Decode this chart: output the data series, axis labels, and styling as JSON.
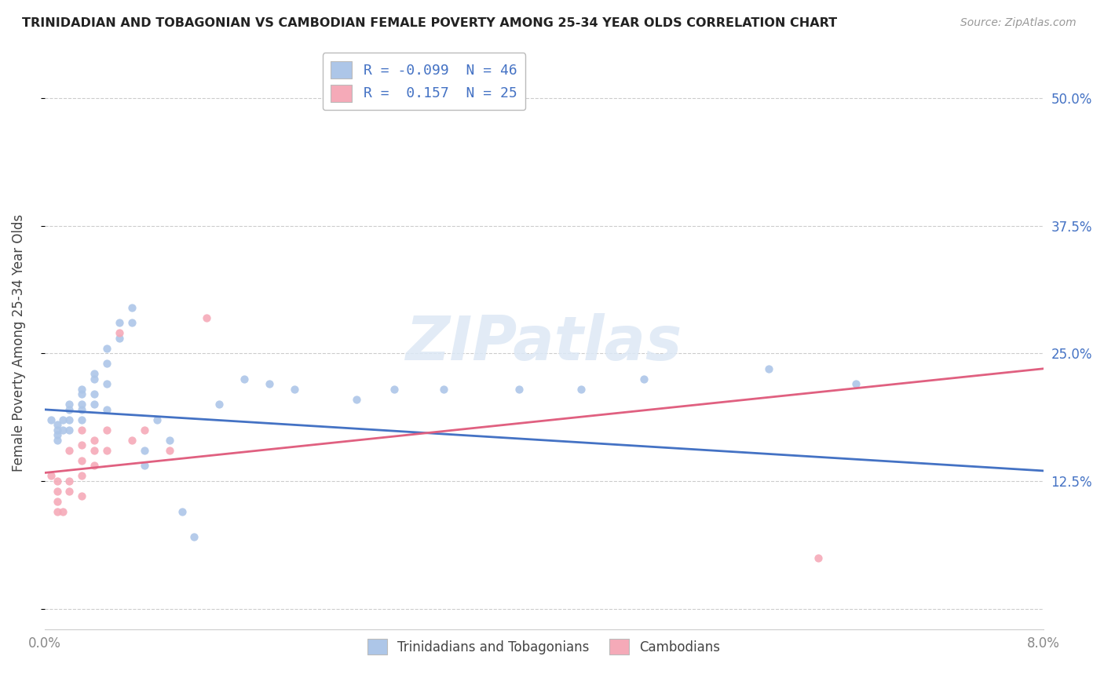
{
  "title": "TRINIDADIAN AND TOBAGONIAN VS CAMBODIAN FEMALE POVERTY AMONG 25-34 YEAR OLDS CORRELATION CHART",
  "source": "Source: ZipAtlas.com",
  "ylabel": "Female Poverty Among 25-34 Year Olds",
  "xlim": [
    0.0,
    0.08
  ],
  "ylim": [
    -0.02,
    0.54
  ],
  "yticks": [
    0.0,
    0.125,
    0.25,
    0.375,
    0.5
  ],
  "ytick_labels": [
    "",
    "12.5%",
    "25.0%",
    "37.5%",
    "50.0%"
  ],
  "xtick_positions": [
    0.0,
    0.01,
    0.02,
    0.03,
    0.04,
    0.05,
    0.06,
    0.07,
    0.08
  ],
  "xtick_labels": [
    "0.0%",
    "",
    "",
    "",
    "",
    "",
    "",
    "",
    "8.0%"
  ],
  "blue_color": "#adc6e8",
  "pink_color": "#f5aab8",
  "blue_line_color": "#4472c4",
  "pink_line_color": "#e06080",
  "watermark_text": "ZIPatlas",
  "legend_title_blue": "R = -0.099  N = 46",
  "legend_title_pink": "R =  0.157  N = 25",
  "grid_color": "#cccccc",
  "title_color": "#222222",
  "axis_label_color": "#444444",
  "tick_color": "#888888",
  "source_color": "#999999",
  "blue_x": [
    0.0005,
    0.001,
    0.001,
    0.001,
    0.001,
    0.0015,
    0.0015,
    0.002,
    0.002,
    0.002,
    0.002,
    0.003,
    0.003,
    0.003,
    0.003,
    0.003,
    0.004,
    0.004,
    0.004,
    0.004,
    0.005,
    0.005,
    0.005,
    0.005,
    0.006,
    0.006,
    0.007,
    0.007,
    0.008,
    0.008,
    0.009,
    0.01,
    0.011,
    0.012,
    0.014,
    0.016,
    0.018,
    0.02,
    0.025,
    0.028,
    0.032,
    0.038,
    0.043,
    0.048,
    0.058,
    0.065
  ],
  "blue_y": [
    0.185,
    0.18,
    0.175,
    0.17,
    0.165,
    0.185,
    0.175,
    0.2,
    0.195,
    0.185,
    0.175,
    0.215,
    0.21,
    0.2,
    0.195,
    0.185,
    0.23,
    0.225,
    0.21,
    0.2,
    0.255,
    0.24,
    0.22,
    0.195,
    0.28,
    0.265,
    0.295,
    0.28,
    0.155,
    0.14,
    0.185,
    0.165,
    0.095,
    0.07,
    0.2,
    0.225,
    0.22,
    0.215,
    0.205,
    0.215,
    0.215,
    0.215,
    0.215,
    0.225,
    0.235,
    0.22
  ],
  "pink_x": [
    0.0005,
    0.001,
    0.001,
    0.001,
    0.001,
    0.0015,
    0.002,
    0.002,
    0.002,
    0.003,
    0.003,
    0.003,
    0.003,
    0.003,
    0.004,
    0.004,
    0.004,
    0.005,
    0.005,
    0.006,
    0.007,
    0.008,
    0.01,
    0.013,
    0.062
  ],
  "pink_y": [
    0.13,
    0.125,
    0.115,
    0.105,
    0.095,
    0.095,
    0.155,
    0.125,
    0.115,
    0.175,
    0.16,
    0.145,
    0.13,
    0.11,
    0.165,
    0.155,
    0.14,
    0.175,
    0.155,
    0.27,
    0.165,
    0.175,
    0.155,
    0.285,
    0.05
  ]
}
